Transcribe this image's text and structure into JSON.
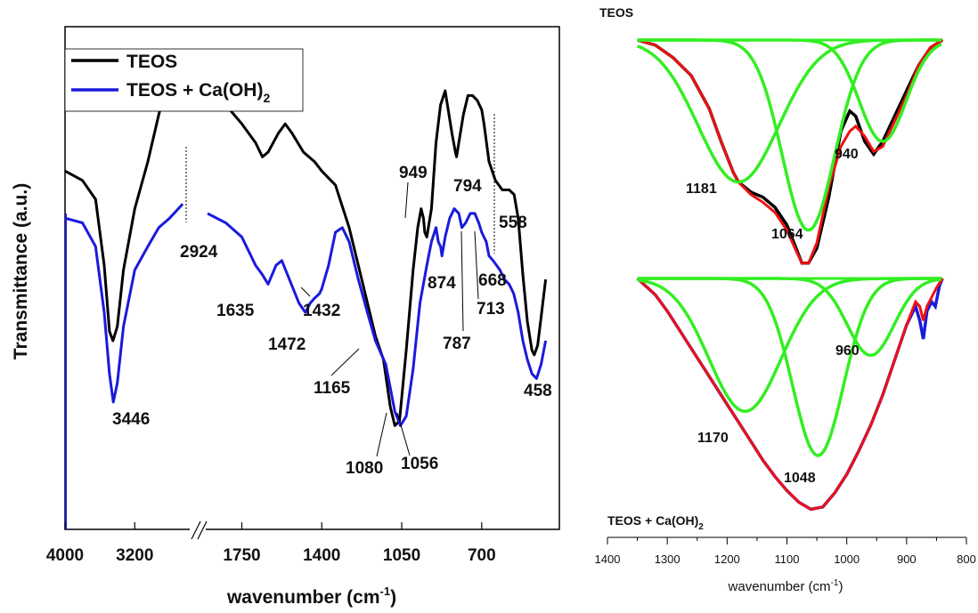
{
  "colors": {
    "teos": "#000000",
    "teos_ca": "#1a1adc",
    "fit": "#33ee22",
    "envelope": "#ee1111"
  },
  "chart_data": [
    {
      "type": "line",
      "xlabel": "wavenumber (cm",
      "xlabel_sup": "-1",
      "xlabel_tail": ")",
      "ylabel": "Transmittance (a.u.)",
      "x_axis_break": true,
      "x_segments": [
        {
          "range": [
            4000,
            2600
          ],
          "ticks": [
            "4000",
            "3200"
          ]
        },
        {
          "range": [
            1900,
            360
          ],
          "ticks": [
            "1750",
            "1400",
            "1050",
            "700"
          ]
        }
      ],
      "legend": {
        "placement": "top-left",
        "entries": [
          {
            "label": "TEOS",
            "color": "#000000"
          },
          {
            "label": "TEOS + Ca(OH)",
            "sub": "2",
            "color": "#1a1adc"
          }
        ]
      },
      "series": [
        {
          "name": "TEOS",
          "color": "#000000",
          "points": [
            [
              4000,
              0.76
            ],
            [
              3800,
              0.74
            ],
            [
              3650,
              0.7
            ],
            [
              3550,
              0.56
            ],
            [
              3490,
              0.42
            ],
            [
              3450,
              0.4
            ],
            [
              3400,
              0.43
            ],
            [
              3330,
              0.55
            ],
            [
              3200,
              0.68
            ],
            [
              3050,
              0.78
            ],
            [
              2924,
              0.88
            ],
            [
              2800,
              0.96
            ],
            [
              2700,
              0.99
            ],
            [
              2650,
              1.01
            ],
            [
              1900,
              0.95
            ],
            [
              1820,
              0.9
            ],
            [
              1750,
              0.86
            ],
            [
              1690,
              0.82
            ],
            [
              1660,
              0.79
            ],
            [
              1635,
              0.8
            ],
            [
              1590,
              0.84
            ],
            [
              1560,
              0.86
            ],
            [
              1530,
              0.84
            ],
            [
              1480,
              0.8
            ],
            [
              1432,
              0.78
            ],
            [
              1400,
              0.76
            ],
            [
              1340,
              0.73
            ],
            [
              1280,
              0.64
            ],
            [
              1220,
              0.52
            ],
            [
              1190,
              0.46
            ],
            [
              1165,
              0.41
            ],
            [
              1130,
              0.36
            ],
            [
              1100,
              0.26
            ],
            [
              1080,
              0.22
            ],
            [
              1060,
              0.23
            ],
            [
              1030,
              0.38
            ],
            [
              1000,
              0.55
            ],
            [
              980,
              0.64
            ],
            [
              965,
              0.68
            ],
            [
              955,
              0.66
            ],
            [
              949,
              0.63
            ],
            [
              940,
              0.62
            ],
            [
              920,
              0.68
            ],
            [
              900,
              0.82
            ],
            [
              880,
              0.9
            ],
            [
              860,
              0.93
            ],
            [
              830,
              0.84
            ],
            [
              815,
              0.8
            ],
            [
              810,
              0.79
            ],
            [
              800,
              0.82
            ],
            [
              780,
              0.88
            ],
            [
              760,
              0.92
            ],
            [
              740,
              0.92
            ],
            [
              720,
              0.91
            ],
            [
              700,
              0.89
            ],
            [
              690,
              0.86
            ],
            [
              668,
              0.78
            ],
            [
              640,
              0.74
            ],
            [
              610,
              0.72
            ],
            [
              580,
              0.72
            ],
            [
              558,
              0.71
            ],
            [
              540,
              0.66
            ],
            [
              520,
              0.54
            ],
            [
              500,
              0.44
            ],
            [
              480,
              0.38
            ],
            [
              470,
              0.37
            ],
            [
              455,
              0.39
            ],
            [
              440,
              0.45
            ],
            [
              420,
              0.53
            ]
          ]
        },
        {
          "name": "TEOS + Ca(OH)2",
          "color": "#1a1adc",
          "points": [
            [
              4000,
              0.66
            ],
            [
              3800,
              0.65
            ],
            [
              3650,
              0.6
            ],
            [
              3550,
              0.46
            ],
            [
              3490,
              0.33
            ],
            [
              3446,
              0.27
            ],
            [
              3400,
              0.31
            ],
            [
              3330,
              0.43
            ],
            [
              3200,
              0.55
            ],
            [
              3050,
              0.6
            ],
            [
              2924,
              0.64
            ],
            [
              2800,
              0.66
            ],
            [
              2700,
              0.68
            ],
            [
              2650,
              0.69
            ],
            [
              1900,
              0.67
            ],
            [
              1820,
              0.65
            ],
            [
              1750,
              0.62
            ],
            [
              1690,
              0.56
            ],
            [
              1660,
              0.54
            ],
            [
              1635,
              0.52
            ],
            [
              1600,
              0.56
            ],
            [
              1575,
              0.57
            ],
            [
              1550,
              0.54
            ],
            [
              1500,
              0.48
            ],
            [
              1472,
              0.46
            ],
            [
              1450,
              0.48
            ],
            [
              1432,
              0.49
            ],
            [
              1410,
              0.5
            ],
            [
              1400,
              0.51
            ],
            [
              1370,
              0.56
            ],
            [
              1340,
              0.63
            ],
            [
              1310,
              0.64
            ],
            [
              1280,
              0.61
            ],
            [
              1240,
              0.53
            ],
            [
              1200,
              0.46
            ],
            [
              1165,
              0.4
            ],
            [
              1120,
              0.35
            ],
            [
              1080,
              0.25
            ],
            [
              1056,
              0.22
            ],
            [
              1030,
              0.24
            ],
            [
              1000,
              0.34
            ],
            [
              970,
              0.48
            ],
            [
              940,
              0.56
            ],
            [
              920,
              0.61
            ],
            [
              900,
              0.64
            ],
            [
              890,
              0.61
            ],
            [
              880,
              0.6
            ],
            [
              874,
              0.58
            ],
            [
              860,
              0.62
            ],
            [
              840,
              0.66
            ],
            [
              820,
              0.68
            ],
            [
              800,
              0.67
            ],
            [
              787,
              0.64
            ],
            [
              770,
              0.65
            ],
            [
              750,
              0.67
            ],
            [
              730,
              0.67
            ],
            [
              713,
              0.65
            ],
            [
              700,
              0.63
            ],
            [
              680,
              0.61
            ],
            [
              668,
              0.58
            ],
            [
              650,
              0.57
            ],
            [
              620,
              0.55
            ],
            [
              600,
              0.53
            ],
            [
              580,
              0.52
            ],
            [
              560,
              0.5
            ],
            [
              540,
              0.46
            ],
            [
              520,
              0.4
            ],
            [
              500,
              0.36
            ],
            [
              480,
              0.33
            ],
            [
              460,
              0.32
            ],
            [
              440,
              0.35
            ],
            [
              420,
              0.4
            ]
          ]
        }
      ],
      "annotations": [
        "3446",
        "2924",
        "1635",
        "1472",
        "1432",
        "1165",
        "1080",
        "1056",
        "949",
        "874",
        "794",
        "787",
        "713",
        "668",
        "558",
        "458"
      ]
    },
    {
      "type": "line",
      "title": "TEOS",
      "xlabel": "",
      "xlim": [
        1400,
        800
      ],
      "x_ticks": [
        "1400",
        "1300",
        "1200",
        "1100",
        "1000",
        "900",
        "800"
      ],
      "x_range_data": [
        1350,
        840
      ],
      "experimental": {
        "points": [
          [
            1350,
            0.0
          ],
          [
            1320,
            0.02
          ],
          [
            1290,
            0.07
          ],
          [
            1260,
            0.14
          ],
          [
            1230,
            0.27
          ],
          [
            1210,
            0.4
          ],
          [
            1190,
            0.52
          ],
          [
            1181,
            0.56
          ],
          [
            1160,
            0.6
          ],
          [
            1140,
            0.62
          ],
          [
            1120,
            0.66
          ],
          [
            1100,
            0.73
          ],
          [
            1085,
            0.82
          ],
          [
            1075,
            0.88
          ],
          [
            1064,
            0.88
          ],
          [
            1050,
            0.82
          ],
          [
            1030,
            0.62
          ],
          [
            1010,
            0.36
          ],
          [
            995,
            0.28
          ],
          [
            985,
            0.3
          ],
          [
            970,
            0.4
          ],
          [
            955,
            0.45
          ],
          [
            940,
            0.4
          ],
          [
            920,
            0.3
          ],
          [
            900,
            0.2
          ],
          [
            880,
            0.1
          ],
          [
            860,
            0.03
          ],
          [
            840,
            0.0
          ]
        ]
      },
      "envelope": {
        "points": [
          [
            1350,
            0.0
          ],
          [
            1320,
            0.02
          ],
          [
            1290,
            0.07
          ],
          [
            1260,
            0.14
          ],
          [
            1230,
            0.27
          ],
          [
            1210,
            0.4
          ],
          [
            1190,
            0.52
          ],
          [
            1181,
            0.56
          ],
          [
            1160,
            0.61
          ],
          [
            1140,
            0.64
          ],
          [
            1120,
            0.68
          ],
          [
            1100,
            0.75
          ],
          [
            1085,
            0.83
          ],
          [
            1075,
            0.88
          ],
          [
            1064,
            0.88
          ],
          [
            1050,
            0.8
          ],
          [
            1030,
            0.58
          ],
          [
            1010,
            0.42
          ],
          [
            995,
            0.36
          ],
          [
            985,
            0.34
          ],
          [
            970,
            0.38
          ],
          [
            955,
            0.44
          ],
          [
            940,
            0.42
          ],
          [
            920,
            0.32
          ],
          [
            900,
            0.22
          ],
          [
            880,
            0.1
          ],
          [
            860,
            0.03
          ],
          [
            840,
            0.0
          ]
        ]
      },
      "components": [
        {
          "center": 1181,
          "amp": 0.56,
          "width": 95
        },
        {
          "center": 1064,
          "amp": 0.75,
          "width": 62
        },
        {
          "center": 940,
          "amp": 0.4,
          "width": 55
        }
      ],
      "peak_labels": [
        "1181",
        "1064",
        "940"
      ]
    },
    {
      "type": "line",
      "title": "TEOS + Ca(OH)",
      "title_sub": "2",
      "xlabel": "wavenumber (cm",
      "xlabel_sup": "-1",
      "xlabel_tail": ")",
      "xlim": [
        1400,
        800
      ],
      "x_ticks": [
        "1400",
        "1300",
        "1200",
        "1100",
        "1000",
        "900",
        "800"
      ],
      "x_range_data": [
        1350,
        840
      ],
      "experimental": {
        "points": [
          [
            1350,
            0.0
          ],
          [
            1320,
            0.07
          ],
          [
            1300,
            0.14
          ],
          [
            1280,
            0.22
          ],
          [
            1260,
            0.3
          ],
          [
            1240,
            0.38
          ],
          [
            1220,
            0.46
          ],
          [
            1200,
            0.54
          ],
          [
            1180,
            0.62
          ],
          [
            1160,
            0.7
          ],
          [
            1140,
            0.78
          ],
          [
            1120,
            0.85
          ],
          [
            1100,
            0.91
          ],
          [
            1080,
            0.96
          ],
          [
            1060,
            0.99
          ],
          [
            1040,
            0.98
          ],
          [
            1020,
            0.92
          ],
          [
            1000,
            0.84
          ],
          [
            980,
            0.74
          ],
          [
            960,
            0.63
          ],
          [
            940,
            0.5
          ],
          [
            920,
            0.35
          ],
          [
            900,
            0.2
          ],
          [
            885,
            0.12
          ],
          [
            878,
            0.18
          ],
          [
            872,
            0.26
          ],
          [
            866,
            0.14
          ],
          [
            858,
            0.1
          ],
          [
            852,
            0.12
          ],
          [
            845,
            0.03
          ],
          [
            840,
            0.0
          ]
        ]
      },
      "envelope": {
        "points": [
          [
            1350,
            0.0
          ],
          [
            1320,
            0.07
          ],
          [
            1300,
            0.14
          ],
          [
            1280,
            0.22
          ],
          [
            1260,
            0.3
          ],
          [
            1240,
            0.38
          ],
          [
            1220,
            0.46
          ],
          [
            1200,
            0.54
          ],
          [
            1180,
            0.62
          ],
          [
            1160,
            0.7
          ],
          [
            1140,
            0.78
          ],
          [
            1120,
            0.85
          ],
          [
            1100,
            0.91
          ],
          [
            1080,
            0.96
          ],
          [
            1060,
            0.99
          ],
          [
            1040,
            0.98
          ],
          [
            1020,
            0.92
          ],
          [
            1000,
            0.84
          ],
          [
            980,
            0.74
          ],
          [
            960,
            0.63
          ],
          [
            940,
            0.5
          ],
          [
            920,
            0.35
          ],
          [
            900,
            0.2
          ],
          [
            885,
            0.1
          ],
          [
            878,
            0.12
          ],
          [
            872,
            0.18
          ],
          [
            866,
            0.12
          ],
          [
            858,
            0.08
          ],
          [
            850,
            0.04
          ],
          [
            840,
            0.0
          ]
        ]
      },
      "components": [
        {
          "center": 1170,
          "amp": 0.57,
          "width": 85
        },
        {
          "center": 1048,
          "amp": 0.76,
          "width": 60
        },
        {
          "center": 960,
          "amp": 0.33,
          "width": 55
        }
      ],
      "peak_labels": [
        "1170",
        "1048",
        "960"
      ]
    }
  ]
}
